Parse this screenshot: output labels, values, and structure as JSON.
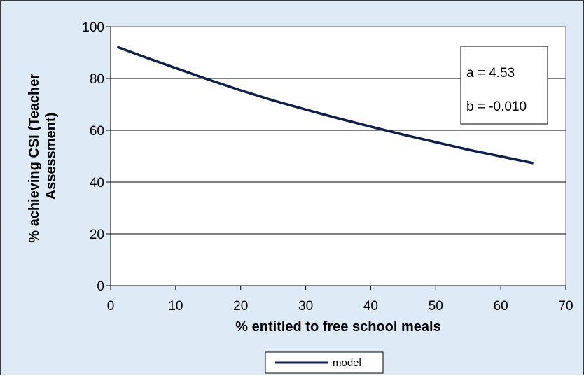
{
  "chart_data": {
    "type": "line",
    "xlabel": "% entitled to free school meals",
    "ylabel_lines": [
      "% achieving CSI (Teacher",
      "Assessment)"
    ],
    "xlim": [
      0,
      70
    ],
    "ylim": [
      0,
      100
    ],
    "xticks": [
      0,
      10,
      20,
      30,
      40,
      50,
      60,
      70
    ],
    "yticks": [
      0,
      20,
      40,
      60,
      80,
      100
    ],
    "grid": "horizontal",
    "legend_position": "bottom-center",
    "series": [
      {
        "name": "model",
        "color": "#0d1f4a",
        "x": [
          1,
          5,
          10,
          15,
          20,
          25,
          30,
          35,
          40,
          45,
          50,
          55,
          60,
          65
        ],
        "y": [
          92.2,
          88.5,
          84.0,
          79.6,
          75.4,
          71.5,
          68.0,
          64.6,
          61.4,
          58.3,
          55.4,
          52.5,
          49.9,
          47.3
        ]
      }
    ],
    "annotations": [
      "a = 4.53",
      "b = -0.010"
    ]
  }
}
